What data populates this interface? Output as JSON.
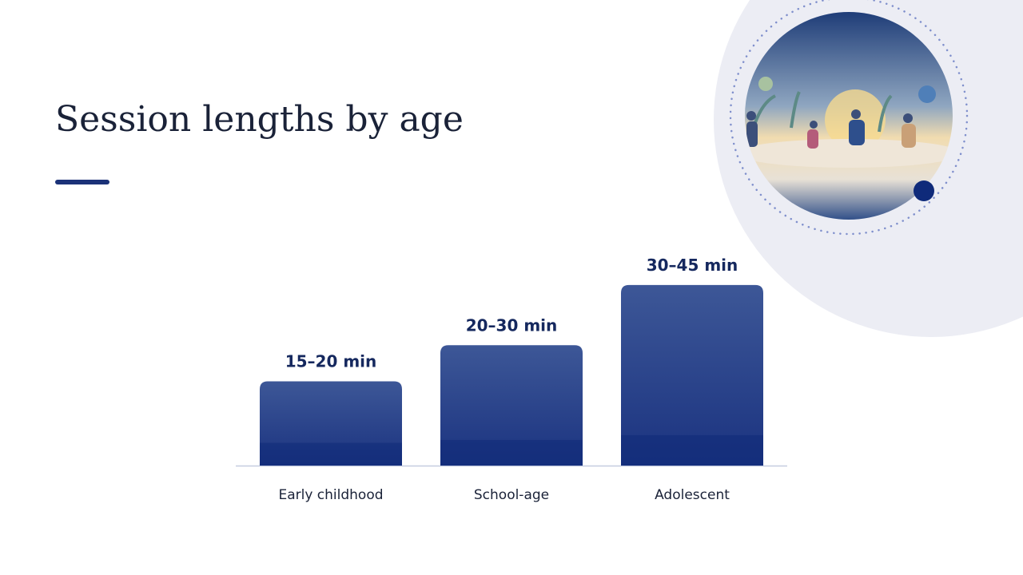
{
  "chart_data": {
    "type": "bar",
    "title": "Session lengths by age",
    "categories": [
      "Early childhood",
      "School-age",
      "Adolescent"
    ],
    "values": [
      17.5,
      25,
      37.5
    ],
    "value_labels": [
      "15–20 min",
      "20–30 min",
      "30–45 min"
    ],
    "color": "#2a428a"
  }
}
